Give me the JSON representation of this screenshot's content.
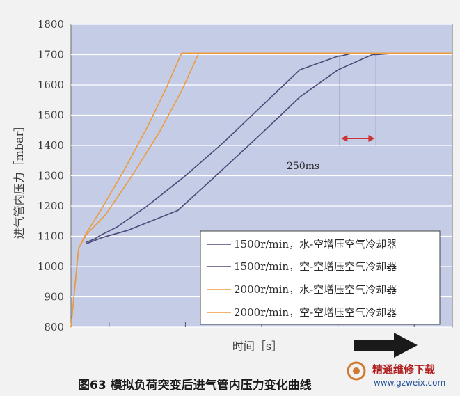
{
  "caption": "图63 模拟负荷突变后进气管内压力变化曲线",
  "watermark": {
    "name": "精通维修下载",
    "url": "www.gzweix.com"
  },
  "colors": {
    "plot_bg": "#c5cce6",
    "grid": "#ffffff",
    "dark_series": "#4a4a78",
    "orange_series": "#ec9a3c",
    "annotation_arrow": "#cc3333",
    "big_arrow": "#1a1a1a",
    "panel_bg": "#f2f2f2"
  },
  "chart_data": {
    "type": "line",
    "title": "",
    "xlabel": "时间［s］",
    "ylabel": "进气管内压力［mbar］",
    "ylim": [
      800,
      1800
    ],
    "yticks": [
      800,
      900,
      1000,
      1100,
      1200,
      1300,
      1400,
      1500,
      1600,
      1700,
      1800
    ],
    "xlim": [
      0,
      1000
    ],
    "x_tick_marks": [
      100,
      300,
      500,
      700,
      900
    ],
    "grid": "horizontal",
    "legend_position": "bottom-right",
    "series": [
      {
        "name": "1500r/min，水-空增压空气冷却器",
        "color": "#4a4a78",
        "x": [
          40,
          60,
          80,
          120,
          200,
          300,
          400,
          500,
          600,
          700,
          705,
          740,
          1000
        ],
        "y": [
          1080,
          1090,
          1105,
          1130,
          1200,
          1300,
          1410,
          1530,
          1650,
          1695,
          1695,
          1705,
          1705
        ]
      },
      {
        "name": "1500r/min，空-空增压空气冷却器",
        "color": "#4a4a78",
        "x": [
          40,
          60,
          80,
          150,
          280,
          380,
          500,
          600,
          700,
          790,
          800,
          860,
          1000
        ],
        "y": [
          1075,
          1085,
          1095,
          1120,
          1185,
          1300,
          1440,
          1560,
          1650,
          1700,
          1700,
          1705,
          1705
        ]
      },
      {
        "name": "2000r/min，水-空增压空气冷却器",
        "color": "#ec9a3c",
        "x": [
          0,
          20,
          40,
          80,
          140,
          200,
          250,
          290,
          1000
        ],
        "y": [
          800,
          1060,
          1110,
          1190,
          1320,
          1460,
          1590,
          1705,
          1705
        ]
      },
      {
        "name": "2000r/min，空-空增压空气冷却器",
        "color": "#ec9a3c",
        "x": [
          0,
          20,
          40,
          90,
          160,
          230,
          290,
          335,
          1000
        ],
        "y": [
          800,
          1060,
          1105,
          1170,
          1300,
          1440,
          1580,
          1705,
          1705
        ]
      }
    ],
    "annotation": {
      "label": "250ms",
      "from_x": 705,
      "to_x": 800,
      "y": 1423
    }
  }
}
